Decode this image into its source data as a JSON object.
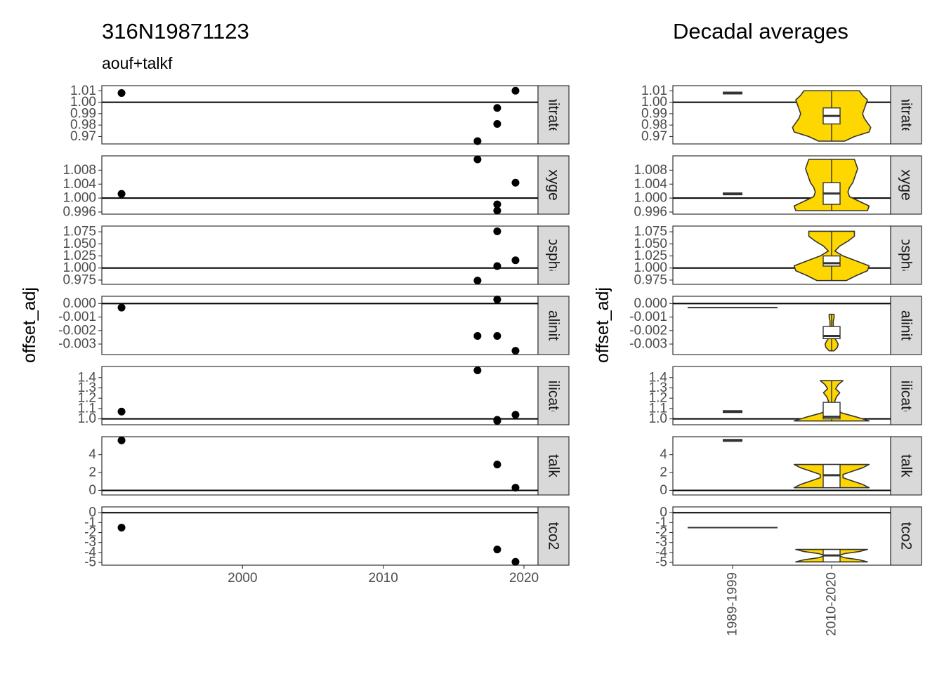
{
  "title": "316N19871123",
  "subtitle": "aouf+talkf",
  "right_title": "Decadal averages",
  "ylabel": "offset_adj",
  "colors": {
    "violin_fill": "#FFD700",
    "panel_border": "#333333",
    "strip_fill": "#D9D9D9",
    "point": "#000000"
  },
  "chart_data": [
    {
      "type": "scatter",
      "title": "316N19871123",
      "subtitle": "aouf+talkf",
      "ylabel": "offset_adj",
      "xlim": [
        1990,
        2021
      ],
      "xticks": [
        2000,
        2010,
        2020
      ],
      "facets": [
        {
          "name": "nitrate",
          "ylim": [
            0.966,
            1.012
          ],
          "ticks": [
            0.97,
            0.98,
            0.99,
            1.0,
            1.01
          ],
          "labels": [
            "0.97",
            "0.98",
            "0.99",
            "1.00",
            "1.01"
          ],
          "hline": 1.0,
          "points": [
            [
              1991.4,
              1.008
            ],
            [
              2016.7,
              0.966
            ],
            [
              2018.1,
              0.995
            ],
            [
              2018.1,
              0.981
            ],
            [
              2019.4,
              1.01
            ]
          ]
        },
        {
          "name": "oxygen",
          "ylim": [
            0.9962,
            1.0113
          ],
          "ticks": [
            0.996,
            1.0,
            1.004,
            1.008
          ],
          "labels": [
            "0.996",
            "1.000",
            "1.004",
            "1.008"
          ],
          "hline": 1.0,
          "points": [
            [
              1991.4,
              1.0012
            ],
            [
              2016.7,
              1.0111
            ],
            [
              2018.1,
              0.9982
            ],
            [
              2018.1,
              0.9964
            ],
            [
              2019.4,
              1.0044
            ]
          ]
        },
        {
          "name": "phosphate",
          "ylim": [
            0.972,
            1.081
          ],
          "ticks": [
            0.975,
            1.0,
            1.025,
            1.05,
            1.075
          ],
          "labels": [
            "0.975",
            "1.000",
            "1.025",
            "1.050",
            "1.075"
          ],
          "hline": 1.0,
          "points": [
            [
              2016.7,
              0.974
            ],
            [
              2018.1,
              1.076
            ],
            [
              2018.1,
              1.004
            ],
            [
              2019.4,
              1.016
            ]
          ]
        },
        {
          "name": "salinity",
          "ylim": [
            -0.00357,
            0.00033
          ],
          "ticks": [
            0.0,
            -0.001,
            -0.002,
            -0.003
          ],
          "labels": [
            "0.000",
            "-0.001",
            "-0.002",
            "-0.003"
          ],
          "hline": 0.0,
          "points": [
            [
              1991.4,
              -0.0003
            ],
            [
              2016.7,
              -0.0024
            ],
            [
              2018.1,
              -0.0024
            ],
            [
              2018.1,
              0.0003
            ],
            [
              2019.4,
              -0.0035
            ]
          ]
        },
        {
          "name": "silicate",
          "ylim": [
            0.97,
            1.48
          ],
          "ticks": [
            1.0,
            1.1,
            1.2,
            1.3,
            1.4
          ],
          "labels": [
            "1.0",
            "1.1",
            "1.2",
            "1.3",
            "1.4"
          ],
          "hline": 1.0,
          "points": [
            [
              1991.4,
              1.07
            ],
            [
              2016.7,
              1.47
            ],
            [
              2018.1,
              0.99
            ],
            [
              2018.1,
              0.98
            ],
            [
              2019.4,
              1.04
            ]
          ]
        },
        {
          "name": "talk",
          "ylim": [
            -0.2,
            5.7
          ],
          "ticks": [
            0,
            2,
            4
          ],
          "labels": [
            "0",
            "2",
            "4"
          ],
          "hline": 0.0,
          "points": [
            [
              1991.4,
              5.6
            ],
            [
              2018.1,
              2.9
            ],
            [
              2019.4,
              0.3
            ]
          ]
        },
        {
          "name": "tco2",
          "ylim": [
            -5.0,
            0.3
          ],
          "ticks": [
            0,
            -1,
            -2,
            -3,
            -4,
            -5
          ],
          "labels": [
            "0",
            "-1",
            "-2",
            "-3",
            "-4",
            "-5"
          ],
          "hline": 0.0,
          "points": [
            [
              1991.4,
              -1.5
            ],
            [
              2018.1,
              -3.7
            ],
            [
              2019.4,
              -4.95
            ]
          ]
        }
      ]
    },
    {
      "type": "violin",
      "title": "Decadal averages",
      "ylabel": "offset_adj",
      "categories": [
        "1989-1999",
        "2010-2020"
      ],
      "facets": [
        {
          "name": "nitrate",
          "hline": 1.0,
          "groups": [
            {
              "category": "1989-1999",
              "single": 1.008
            },
            {
              "category": "2010-2020",
              "q1": 0.981,
              "median": 0.988,
              "q3": 0.995,
              "lo": 0.966,
              "hi": 1.01,
              "violin_hw": [
                0.16,
                0.28,
                0.46,
                0.48,
                0.44,
                0.4,
                0.38,
                0.4,
                0.42,
                0.44,
                0.38,
                0.34
              ]
            }
          ]
        },
        {
          "name": "oxygen",
          "hline": 1.0,
          "groups": [
            {
              "category": "1989-1999",
              "single": 1.0012
            },
            {
              "category": "2010-2020",
              "q1": 0.9982,
              "median": 1.0013,
              "q3": 1.0044,
              "lo": 0.9964,
              "hi": 1.0111,
              "violin_hw": [
                0.44,
                0.46,
                0.34,
                0.22,
                0.2,
                0.22,
                0.26,
                0.28,
                0.3,
                0.32,
                0.3,
                0.28
              ]
            }
          ]
        },
        {
          "name": "phosphate",
          "hline": 1.0,
          "groups": [
            {
              "category": "2010-2020",
              "q1": 1.004,
              "median": 1.01,
              "q3": 1.025,
              "lo": 0.974,
              "hi": 1.076,
              "violin_hw": [
                0.18,
                0.3,
                0.44,
                0.46,
                0.3,
                0.14,
                0.04,
                0.1,
                0.2,
                0.28,
                0.28
              ]
            }
          ]
        },
        {
          "name": "salinity",
          "hline": 0.0,
          "groups": [
            {
              "category": "1989-1999",
              "single": -0.0003,
              "wide": true
            },
            {
              "category": "2010-2020",
              "q1": -0.0026,
              "median": -0.0024,
              "q3": -0.0017,
              "lo": -0.0035,
              "hi": -0.0008,
              "violin_hw": [
                0.03,
                0.07,
                0.08,
                0.06,
                0.03,
                0.02,
                0.02,
                0.02,
                0.02,
                0.02,
                0.03,
                0.03
              ]
            }
          ]
        },
        {
          "name": "silicate",
          "hline": 1.0,
          "groups": [
            {
              "category": "1989-1999",
              "single": 1.07
            },
            {
              "category": "2010-2020",
              "q1": 1.0,
              "median": 1.02,
              "q3": 1.16,
              "lo": 0.98,
              "hi": 1.37,
              "violin_hw": [
                0.46,
                0.3,
                0.12,
                0.06,
                0.04,
                0.04,
                0.06,
                0.1,
                0.05,
                0.08,
                0.14
              ]
            }
          ]
        },
        {
          "name": "talk",
          "hline": 0.0,
          "groups": [
            {
              "category": "1989-1999",
              "single": 5.6
            },
            {
              "category": "2010-2020",
              "q1": 0.3,
              "median": 1.7,
              "q3": 2.9,
              "lo": 0.3,
              "hi": 2.9,
              "violin_hw": [
                0.46,
                0.38,
                0.26,
                0.14,
                0.14,
                0.26,
                0.38,
                0.46
              ]
            }
          ]
        },
        {
          "name": "tco2",
          "hline": 0.0,
          "groups": [
            {
              "category": "1989-1999",
              "single": -1.5,
              "wide": true
            },
            {
              "category": "2010-2020",
              "q1": -4.95,
              "median": -4.3,
              "q3": -3.7,
              "lo": -4.95,
              "hi": -3.7,
              "violin_hw": [
                0.44,
                0.34,
                0.16,
                0.08,
                0.16,
                0.34,
                0.44
              ]
            }
          ]
        }
      ]
    }
  ]
}
